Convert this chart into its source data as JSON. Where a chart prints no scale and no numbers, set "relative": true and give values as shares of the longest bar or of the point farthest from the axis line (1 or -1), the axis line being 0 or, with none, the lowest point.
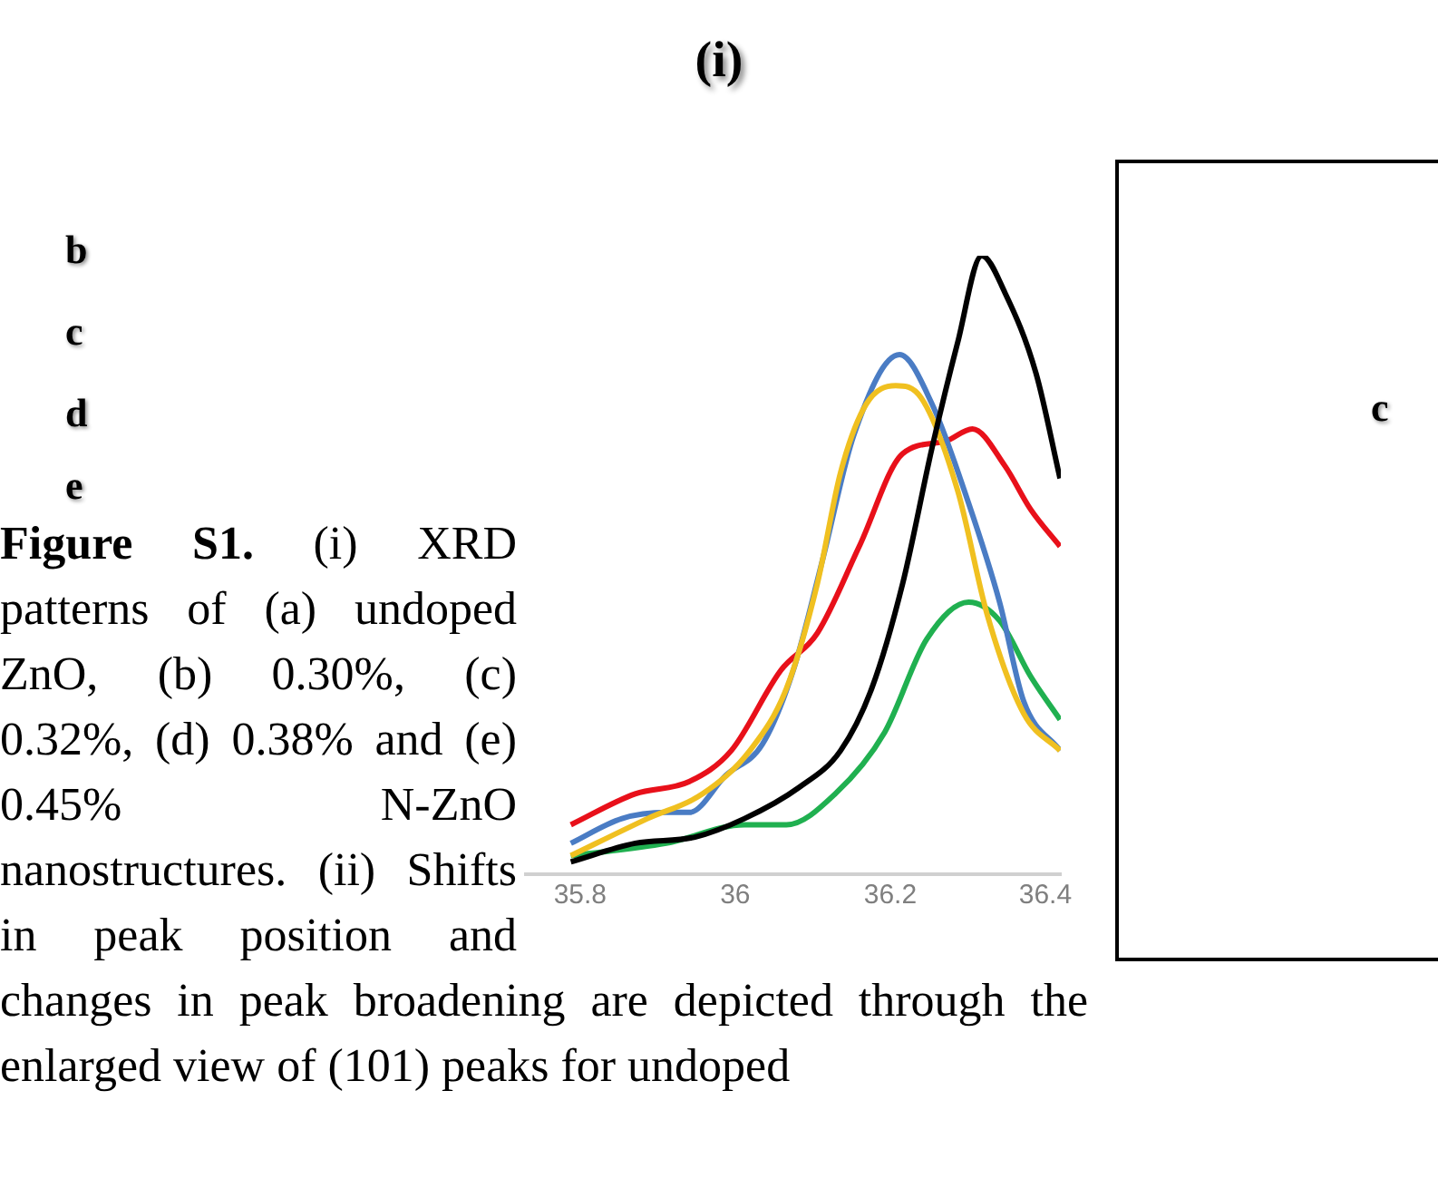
{
  "chart_data": {
    "type": "line",
    "title": "(i)",
    "relative": true,
    "xlim": [
      35.73,
      36.42
    ],
    "xticks": [
      35.8,
      36,
      36.2,
      36.4
    ],
    "grid": false,
    "legend": false,
    "marker": "none",
    "line_style": "solid",
    "annotations": [
      "b",
      "c",
      "d",
      "e",
      "c",
      "Figure S1.",
      "(i) XRD patterns of (a) undoped ZnO, (b) 0.30%, (c) 0.32%, (d) 0.38% and (e) 0.45% N-ZnO nanostructures. (ii) Shifts in peak position and changes in peak broadening are depicted through the enlarged view of (101) peaks for undoped"
    ],
    "series": [
      {
        "color": "#000000",
        "x": [
          35.788,
          35.871,
          35.948,
          36.012,
          36.082,
          36.136,
          36.176,
          36.216,
          36.254,
          36.287,
          36.318,
          36.348,
          36.388,
          36.419
        ],
        "values": [
          0.02,
          0.05,
          0.06,
          0.09,
          0.14,
          0.2,
          0.3,
          0.47,
          0.69,
          0.86,
          1,
          0.94,
          0.81,
          0.64
        ]
      },
      {
        "color": "#f0c020",
        "x": [
          35.788,
          35.887,
          35.958,
          36.019,
          36.066,
          36.106,
          36.136,
          36.169,
          36.207,
          36.24,
          36.287,
          36.325,
          36.372,
          36.419
        ],
        "values": [
          0.03,
          0.09,
          0.13,
          0.2,
          0.3,
          0.47,
          0.65,
          0.76,
          0.79,
          0.77,
          0.62,
          0.42,
          0.26,
          0.2
        ]
      },
      {
        "color": "#4a7cc4",
        "x": [
          35.788,
          35.854,
          35.911,
          35.941,
          35.988,
          36.035,
          36.075,
          36.113,
          36.153,
          36.212,
          36.254,
          36.301,
          36.341,
          36.372,
          36.419
        ],
        "values": [
          0.05,
          0.09,
          0.1,
          0.1,
          0.16,
          0.21,
          0.33,
          0.51,
          0.71,
          0.84,
          0.76,
          0.6,
          0.44,
          0.28,
          0.2
        ]
      },
      {
        "color": "#e8101a",
        "x": [
          35.788,
          35.871,
          35.941,
          35.995,
          36.059,
          36.106,
          36.16,
          36.216,
          36.271,
          36.306,
          36.348,
          36.381,
          36.419
        ],
        "values": [
          0.08,
          0.13,
          0.15,
          0.2,
          0.33,
          0.39,
          0.53,
          0.68,
          0.7,
          0.72,
          0.66,
          0.59,
          0.53
        ]
      },
      {
        "color": "#20b050",
        "x": [
          35.788,
          35.911,
          36.012,
          36.066,
          36.129,
          36.193,
          36.247,
          36.301,
          36.341,
          36.381,
          36.419
        ],
        "values": [
          0.03,
          0.05,
          0.08,
          0.08,
          0.13,
          0.23,
          0.38,
          0.44,
          0.41,
          0.32,
          0.25
        ]
      }
    ]
  }
}
